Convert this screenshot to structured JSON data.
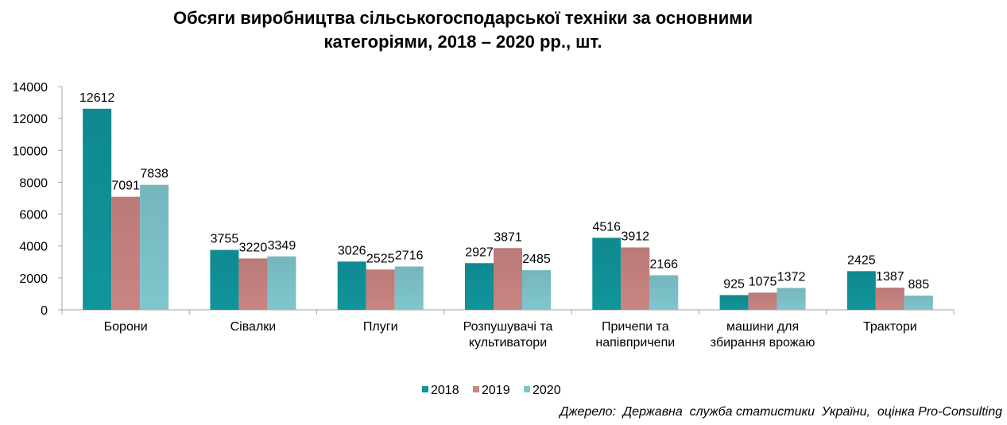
{
  "chart_data": {
    "type": "bar",
    "title_lines": [
      "Обсяги виробництва сільськогосподарської техніки за основними",
      "категоріями, 2018 – 2020 рр., шт."
    ],
    "categories": [
      [
        "Борони"
      ],
      [
        "Сівалки"
      ],
      [
        "Плуги"
      ],
      [
        "Розпушувачі та",
        "культиватори"
      ],
      [
        "Причепи  та",
        "напівпричепи"
      ],
      [
        "машини  для",
        "збирання  врожаю"
      ],
      [
        "Трактори"
      ]
    ],
    "series": [
      {
        "name": "2018",
        "color": "#10959b",
        "values": [
          12612,
          3755,
          3026,
          2927,
          4516,
          925,
          2425
        ]
      },
      {
        "name": "2019",
        "color": "#c98582",
        "values": [
          7091,
          3220,
          2525,
          3871,
          3912,
          1075,
          1387
        ]
      },
      {
        "name": "2020",
        "color": "#7fc6cd",
        "values": [
          7838,
          3349,
          2716,
          2485,
          2166,
          1372,
          885
        ]
      }
    ],
    "ylim": [
      0,
      14000
    ],
    "yticks": [
      "0",
      "2000",
      "4000",
      "6000",
      "8000",
      "10000",
      "12000",
      "14000"
    ],
    "legend_position": "bottom",
    "grid": false
  },
  "source_text": "Джерело:  Державна  служба статистики  України,  оцінка Pro-Consulting"
}
